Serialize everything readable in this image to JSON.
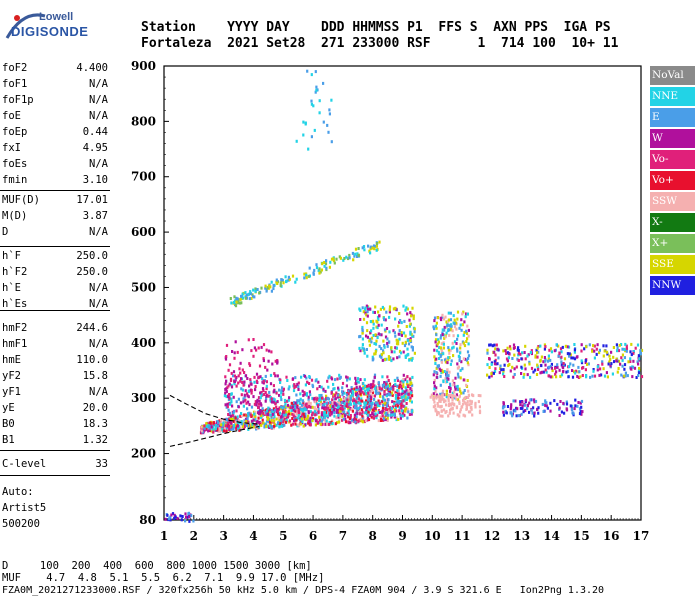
{
  "logo": {
    "line1": "Lowell",
    "line2": "DIGISONDE"
  },
  "header": {
    "row1": "Station    YYYY DAY    DDD HHMMSS P1  FFS S  AXN PPS  IGA PS",
    "row2": "Fortaleza  2021 Set28  271 233000 RSF      1  714 100  10+ 11"
  },
  "params_group1": [
    {
      "k": "foF2",
      "v": "4.400"
    },
    {
      "k": "foF1",
      "v": "N/A"
    },
    {
      "k": "foF1p",
      "v": "N/A"
    },
    {
      "k": "foE",
      "v": "N/A"
    },
    {
      "k": "foEp",
      "v": "0.44"
    },
    {
      "k": "fxI",
      "v": "4.95"
    },
    {
      "k": "foEs",
      "v": "N/A"
    },
    {
      "k": "fmin",
      "v": "3.10"
    }
  ],
  "params_group2": [
    {
      "k": "MUF(D)",
      "v": "17.01"
    },
    {
      "k": "M(D)",
      "v": "3.87"
    },
    {
      "k": "D",
      "v": "N/A"
    }
  ],
  "params_group3": [
    {
      "k": "h`F",
      "v": "250.0"
    },
    {
      "k": "h`F2",
      "v": "250.0"
    },
    {
      "k": "h`E",
      "v": "N/A"
    },
    {
      "k": "h`Es",
      "v": "N/A"
    }
  ],
  "params_group4": [
    {
      "k": "hmF2",
      "v": "244.6"
    },
    {
      "k": "hmF1",
      "v": "N/A"
    },
    {
      "k": "hmE",
      "v": "110.0"
    },
    {
      "k": "yF2",
      "v": "15.8"
    },
    {
      "k": "yF1",
      "v": "N/A"
    },
    {
      "k": "yE",
      "v": "20.0"
    },
    {
      "k": "B0",
      "v": "18.3"
    },
    {
      "k": "B1",
      "v": "1.32"
    }
  ],
  "params_group5": [
    {
      "k": "C-level",
      "v": "33"
    }
  ],
  "auto": {
    "line1": "Auto:",
    "line2": "Artist5",
    "line3": "500200"
  },
  "legend": [
    {
      "label": "NoVal",
      "color": "#8a8a8a"
    },
    {
      "label": "NNE",
      "color": "#22d3e6"
    },
    {
      "label": "E",
      "color": "#4a9ee8"
    },
    {
      "label": "W",
      "color": "#b0109c"
    },
    {
      "label": "Vo-",
      "color": "#e0207a"
    },
    {
      "label": "Vo+",
      "color": "#e8102e"
    },
    {
      "label": "SSW",
      "color": "#f5b0b0"
    },
    {
      "label": "X-",
      "color": "#127a12"
    },
    {
      "label": "X+",
      "color": "#7abf5a"
    },
    {
      "label": "SSE",
      "color": "#d6d600"
    },
    {
      "label": "NNW",
      "color": "#2020e0"
    }
  ],
  "bottom": {
    "line1": "D     100  200  400  600  800 1000 1500 3000 [km]",
    "line2": "MUF    4.7  4.8  5.1  5.5  6.2  7.1  9.9 17.0 [MHz]"
  },
  "footer": "FZA0M_2021271233000.RSF / 320fx256h 50 kHz 5.0 km / DPS-4 FZA0M 904 / 3.9 S 321.6 E   Ion2Png 1.3.20",
  "chart_data": {
    "type": "scatter",
    "title": "",
    "xlabel": "",
    "ylabel": "",
    "xlim": [
      1,
      17
    ],
    "ylim": [
      80,
      900
    ],
    "x_ticks": [
      "1",
      "2",
      "3",
      "4",
      "5",
      "6",
      "7",
      "8",
      "9",
      "10",
      "11",
      "12",
      "13",
      "14",
      "15",
      "16",
      "17"
    ],
    "y_ticks": [
      "200",
      "300",
      "400",
      "500",
      "600",
      "700",
      "800",
      "900"
    ],
    "y_bottom_label": "80",
    "profile_curves": [
      {
        "name": "upper",
        "x": [
          1.2,
          1.8,
          2.4,
          3.0,
          3.6,
          4.2
        ],
        "y": [
          305,
          288,
          272,
          262,
          256,
          253
        ]
      },
      {
        "name": "lower",
        "x": [
          1.2,
          1.8,
          2.4,
          3.0,
          3.6,
          4.2
        ],
        "y": [
          213,
          220,
          228,
          236,
          243,
          249
        ]
      }
    ],
    "clusters": [
      {
        "series": "F-trace",
        "x": [
          2.2,
          9.3
        ],
        "y": [
          240,
          330
        ],
        "colors": [
          "#e8102e",
          "#e0207a",
          "#4a9ee8",
          "#b0109c",
          "#f5b0b0",
          "#d6d600",
          "#22d3e6"
        ],
        "count": 1200
      },
      {
        "series": "F-trace-upper",
        "x": [
          3.0,
          9.3
        ],
        "y": [
          270,
          345
        ],
        "colors": [
          "#4a9ee8",
          "#b0109c",
          "#e0207a",
          "#22d3e6"
        ],
        "count": 500
      },
      {
        "series": "multihop-line",
        "x": [
          3.2,
          8.2
        ],
        "y": [
          475,
          580
        ],
        "colors": [
          "#4a9ee8",
          "#22d3e6",
          "#7abf5a",
          "#d6d600"
        ],
        "count": 160
      },
      {
        "series": "high-spots",
        "x": [
          5.3,
          6.6
        ],
        "y": [
          750,
          900
        ],
        "colors": [
          "#4a9ee8",
          "#22d3e6"
        ],
        "count": 28
      },
      {
        "series": "mid-400",
        "x": [
          7.5,
          9.4
        ],
        "y": [
          370,
          470
        ],
        "colors": [
          "#22d3e6",
          "#4a9ee8",
          "#b0109c",
          "#d6d600"
        ],
        "count": 220
      },
      {
        "series": "block-10",
        "x": [
          10.0,
          11.2
        ],
        "y": [
          300,
          460
        ],
        "colors": [
          "#22d3e6",
          "#4a9ee8",
          "#b0109c",
          "#d6d600",
          "#f5b0b0"
        ],
        "count": 260
      },
      {
        "series": "ssw-10",
        "x": [
          9.9,
          11.6
        ],
        "y": [
          270,
          310
        ],
        "colors": [
          "#f5b0b0"
        ],
        "count": 120
      },
      {
        "series": "band-350",
        "x": [
          11.8,
          17
        ],
        "y": [
          340,
          400
        ],
        "colors": [
          "#b0109c",
          "#2020e0",
          "#4a9ee8",
          "#22d3e6",
          "#d6d600",
          "#e0207a"
        ],
        "count": 360
      },
      {
        "series": "band-280",
        "x": [
          12.3,
          15.0
        ],
        "y": [
          270,
          300
        ],
        "colors": [
          "#4a9ee8",
          "#2020e0",
          "#b0109c"
        ],
        "count": 110
      },
      {
        "series": "low-echo",
        "x": [
          1.0,
          2.0
        ],
        "y": [
          80,
          95
        ],
        "colors": [
          "#b0109c",
          "#4a9ee8",
          "#2020e0"
        ],
        "count": 30
      },
      {
        "series": "spread-column",
        "x": [
          3.0,
          4.8
        ],
        "y": [
          290,
          410
        ],
        "colors": [
          "#b0109c",
          "#e0207a"
        ],
        "count": 90
      }
    ]
  }
}
